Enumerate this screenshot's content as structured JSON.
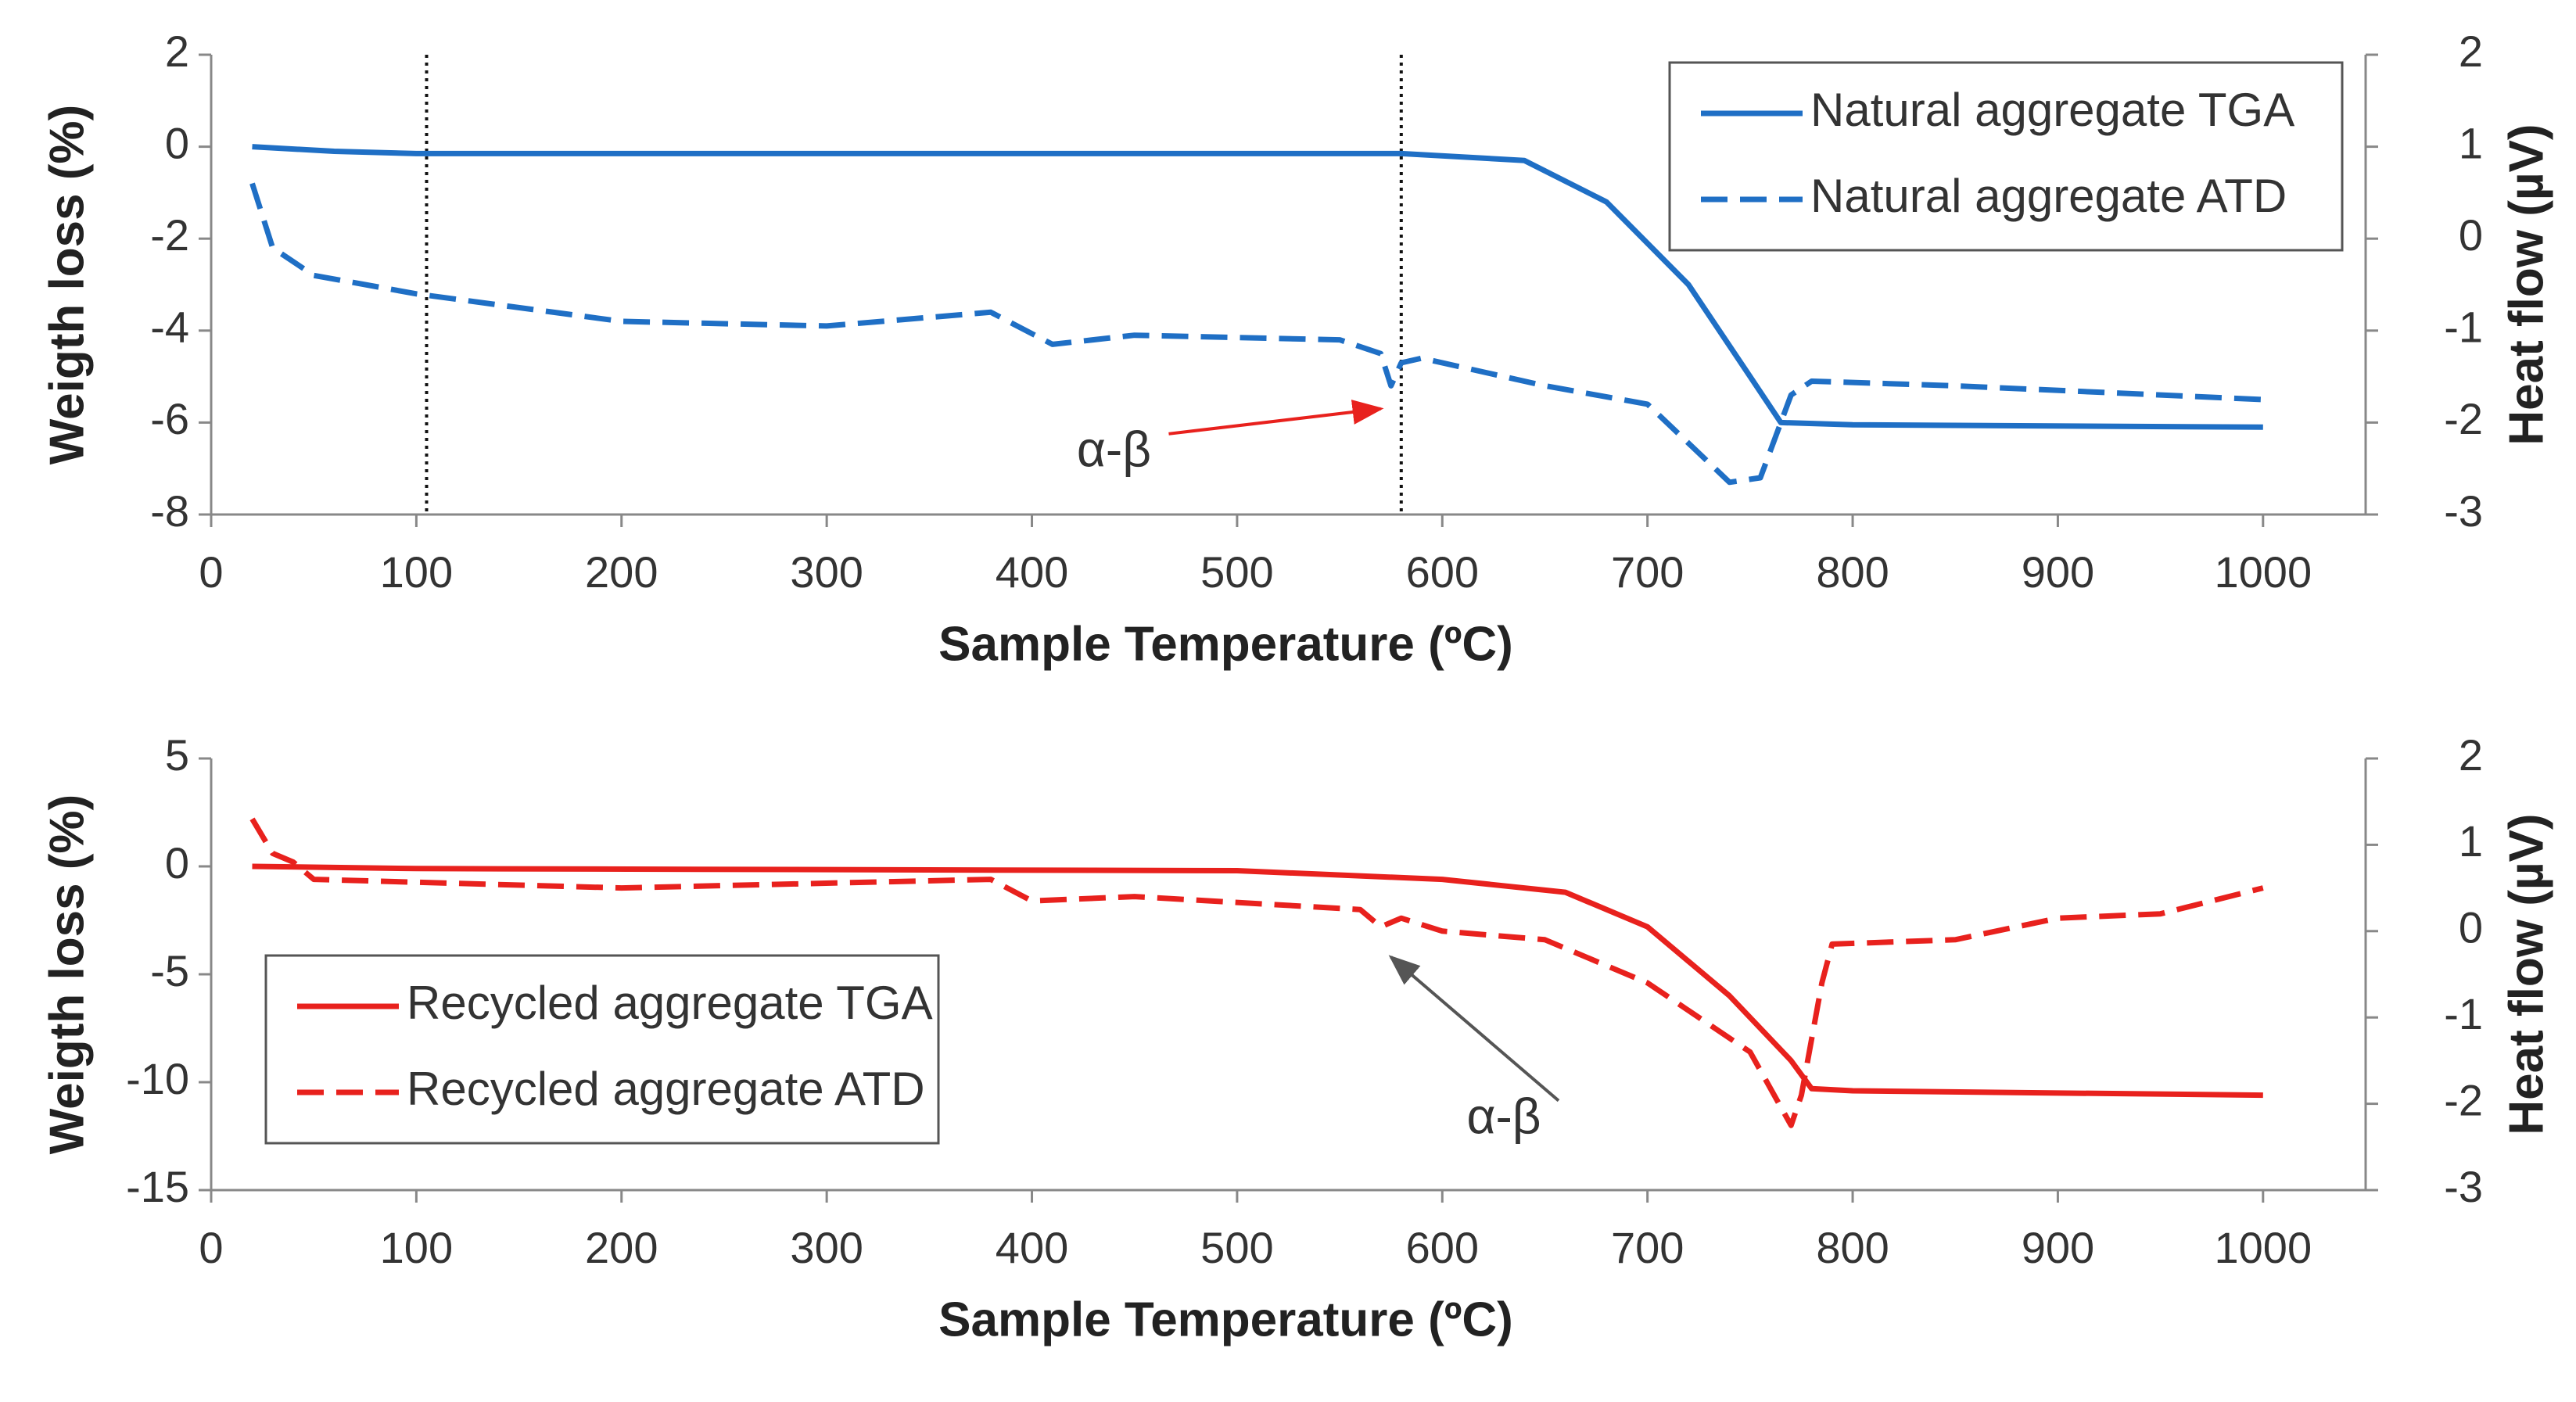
{
  "chart_data": [
    {
      "type": "line",
      "x_label": "Sample Temperature (ºC)",
      "y_label": "Weigth loss (%)",
      "y2_label": "Heat flow (µV)",
      "xlim": [
        0,
        1050
      ],
      "xticks": [
        0,
        100,
        200,
        300,
        400,
        500,
        600,
        700,
        800,
        900,
        1000
      ],
      "ylim": [
        -8,
        2
      ],
      "yticks": [
        -8,
        -6,
        -4,
        -2,
        0,
        2
      ],
      "y2lim": [
        -3,
        2
      ],
      "y2ticks": [
        -3,
        -2,
        -1,
        0,
        1,
        2
      ],
      "legend": "upper right",
      "reference_lines": [
        105,
        580
      ],
      "series": [
        {
          "name": "Natural aggregate TGA",
          "color": "#1f6fc5",
          "style": "solid",
          "x": [
            20,
            60,
            100,
            580,
            640,
            680,
            720,
            750,
            765,
            800,
            1000
          ],
          "values": [
            0,
            -0.1,
            -0.15,
            -0.15,
            -0.3,
            -1.2,
            -3,
            -5,
            -6,
            -6.05,
            -6.1
          ]
        },
        {
          "name": "Natural aggregate ATD",
          "color": "#1f6fc5",
          "style": "dashed",
          "axis": "y2",
          "x": [
            20,
            30,
            50,
            100,
            200,
            300,
            380,
            410,
            450,
            550,
            570,
            575,
            580,
            590,
            650,
            700,
            740,
            755,
            770,
            780,
            850,
            950,
            1000
          ],
          "values": [
            0.6,
            -0.1,
            -0.4,
            -0.6,
            -0.9,
            -0.95,
            -0.8,
            -1.15,
            -1.05,
            -1.1,
            -1.25,
            -1.6,
            -1.35,
            -1.3,
            -1.6,
            -1.8,
            -2.65,
            -2.6,
            -1.7,
            -1.55,
            -1.6,
            -1.7,
            -1.75
          ]
        }
      ],
      "annotations": [
        {
          "text": "α-β",
          "x": 440,
          "y": -6.5,
          "arrow_x": 570,
          "arrow_y": -5.7
        }
      ]
    },
    {
      "type": "line",
      "x_label": "Sample Temperature (ºC)",
      "y_label": "Weigth loss (%)",
      "y2_label": "Heat flow (µV)",
      "xlim": [
        0,
        1050
      ],
      "xticks": [
        0,
        100,
        200,
        300,
        400,
        500,
        600,
        700,
        800,
        900,
        1000
      ],
      "ylim": [
        -15,
        5
      ],
      "yticks": [
        -15,
        -10,
        -5,
        0,
        5
      ],
      "y2lim": [
        -3,
        2
      ],
      "y2ticks": [
        -3,
        -2,
        -1,
        0,
        1,
        2
      ],
      "legend": "lower left",
      "series": [
        {
          "name": "Recycled aggregate TGA",
          "color": "#e8211d",
          "style": "solid",
          "x": [
            20,
            100,
            500,
            600,
            660,
            700,
            740,
            770,
            780,
            800,
            1000
          ],
          "values": [
            0,
            -0.1,
            -0.2,
            -0.6,
            -1.2,
            -2.8,
            -6,
            -9,
            -10.3,
            -10.4,
            -10.6
          ]
        },
        {
          "name": "Recycled aggregate ATD",
          "color": "#e8211d",
          "style": "dashed",
          "axis": "y2",
          "x": [
            20,
            30,
            40,
            50,
            200,
            380,
            400,
            450,
            560,
            570,
            580,
            600,
            650,
            700,
            750,
            770,
            775,
            785,
            790,
            850,
            900,
            950,
            1000
          ],
          "values": [
            1.3,
            0.9,
            0.8,
            0.6,
            0.5,
            0.6,
            0.35,
            0.4,
            0.25,
            0.05,
            0.15,
            0,
            -0.1,
            -0.6,
            -1.4,
            -2.25,
            -1.9,
            -0.6,
            -0.15,
            -0.1,
            0.15,
            0.2,
            0.5
          ]
        }
      ],
      "annotations": [
        {
          "text": "α-β",
          "x": 630,
          "y": -11.4,
          "arrow_x": 575,
          "arrow_y": -4.2
        }
      ]
    }
  ]
}
